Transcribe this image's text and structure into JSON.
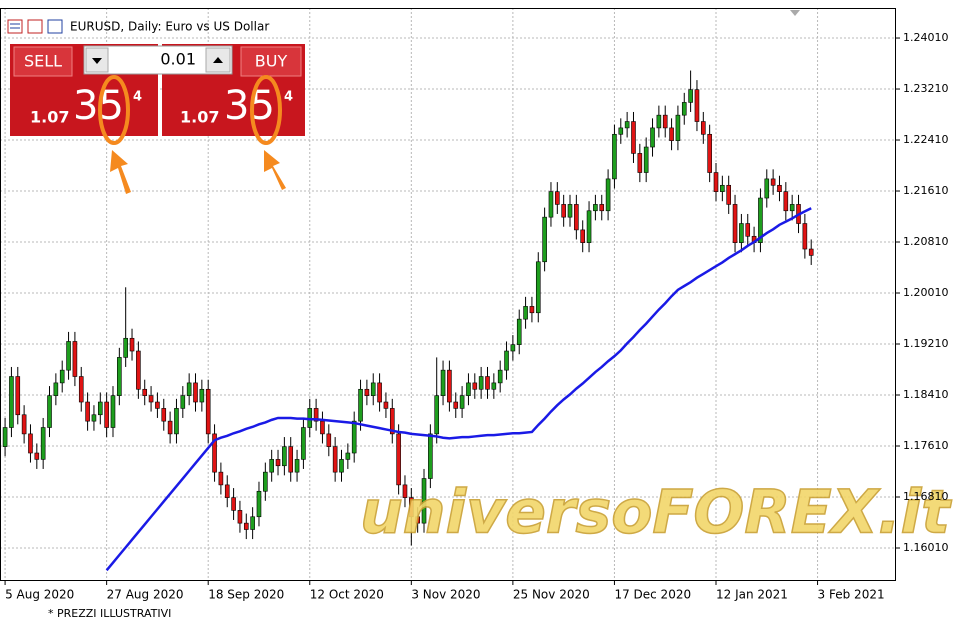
{
  "chart_data": {
    "type": "candlestick",
    "title": "EURUSD, Daily:  Euro vs US Dollar",
    "footnote": "* PREZZI ILLUSTRATIVI",
    "watermark": "universoFOREX.it",
    "up_color": "#1e9e1e",
    "down_color": "#e01414",
    "wick_color": "#000000",
    "ma_color": "#1a1ae6",
    "grid": true,
    "xlim": [
      -0.8,
      140.2
    ],
    "ylim": [
      1.15508,
      1.24481
    ],
    "xticks": [
      {
        "value": 0,
        "label": "5 Aug 2020"
      },
      {
        "value": 16,
        "label": "27 Aug 2020"
      },
      {
        "value": 32,
        "label": "18 Sep 2020"
      },
      {
        "value": 48,
        "label": "12 Oct 2020"
      },
      {
        "value": 64,
        "label": "3 Nov 2020"
      },
      {
        "value": 80,
        "label": "25 Nov 2020"
      },
      {
        "value": 96,
        "label": "17 Dec 2020"
      },
      {
        "value": 112,
        "label": "12 Jan 2021"
      },
      {
        "value": 128,
        "label": "3 Feb 2021"
      }
    ],
    "yticks": [
      {
        "value": 1.1601,
        "label": "1.16010"
      },
      {
        "value": 1.1681,
        "label": "1.16810"
      },
      {
        "value": 1.1761,
        "label": "1.17610"
      },
      {
        "value": 1.1841,
        "label": "1.18410"
      },
      {
        "value": 1.1921,
        "label": "1.19210"
      },
      {
        "value": 1.2001,
        "label": "1.20010"
      },
      {
        "value": 1.2081,
        "label": "1.20810"
      },
      {
        "value": 1.2161,
        "label": "1.21610"
      },
      {
        "value": 1.2241,
        "label": "1.22410"
      },
      {
        "value": 1.2321,
        "label": "1.23210"
      },
      {
        "value": 1.2401,
        "label": "1.24010"
      }
    ],
    "open": [
      1.176,
      1.179,
      1.187,
      1.181,
      1.178,
      1.175,
      1.174,
      1.179,
      1.184,
      1.186,
      1.188,
      1.1925,
      1.187,
      1.183,
      1.18,
      1.181,
      1.183,
      1.179,
      1.184,
      1.19,
      1.193,
      1.191,
      1.185,
      1.184,
      1.183,
      1.182,
      1.18,
      1.178,
      1.182,
      1.184,
      1.186,
      1.183,
      1.185,
      1.178,
      1.172,
      1.17,
      1.168,
      1.166,
      1.164,
      1.163,
      1.165,
      1.169,
      1.172,
      1.174,
      1.173,
      1.176,
      1.172,
      1.174,
      1.179,
      1.182,
      1.18,
      1.178,
      1.176,
      1.172,
      1.174,
      1.175,
      1.18,
      1.185,
      1.184,
      1.186,
      1.183,
      1.182,
      1.178,
      1.17,
      1.168,
      1.165,
      1.164,
      1.171,
      1.178,
      1.184,
      1.188,
      1.183,
      1.182,
      1.184,
      1.186,
      1.185,
      1.187,
      1.185,
      1.186,
      1.188,
      1.191,
      1.192,
      1.196,
      1.198,
      1.197,
      1.205,
      1.212,
      1.216,
      1.214,
      1.212,
      1.214,
      1.21,
      1.208,
      1.213,
      1.214,
      1.213,
      1.218,
      1.225,
      1.226,
      1.227,
      1.222,
      1.219,
      1.223,
      1.226,
      1.228,
      1.226,
      1.224,
      1.228,
      1.23,
      1.232,
      1.227,
      1.225,
      1.219,
      1.216,
      1.217,
      1.214,
      1.208,
      1.211,
      1.209,
      1.208,
      1.215,
      1.218,
      1.217,
      1.216,
      1.213,
      1.214,
      1.211,
      1.207
    ],
    "high": [
      1.1805,
      1.1885,
      1.1885,
      1.1825,
      1.1795,
      1.1765,
      1.1805,
      1.1855,
      1.1875,
      1.1895,
      1.194,
      1.194,
      1.1885,
      1.1845,
      1.1825,
      1.1845,
      1.1845,
      1.1855,
      1.1915,
      1.201,
      1.1945,
      1.1925,
      1.1865,
      1.1855,
      1.1845,
      1.1835,
      1.1815,
      1.1835,
      1.1855,
      1.1875,
      1.1875,
      1.1865,
      1.1865,
      1.1795,
      1.1735,
      1.1715,
      1.1695,
      1.1675,
      1.1655,
      1.1665,
      1.1705,
      1.1735,
      1.1755,
      1.1755,
      1.1775,
      1.1775,
      1.1755,
      1.1805,
      1.1835,
      1.1835,
      1.1815,
      1.1795,
      1.1775,
      1.1755,
      1.1765,
      1.1815,
      1.1865,
      1.1865,
      1.1875,
      1.1875,
      1.1845,
      1.1835,
      1.1795,
      1.1715,
      1.1695,
      1.1665,
      1.1725,
      1.1795,
      1.19,
      1.1895,
      1.1895,
      1.1845,
      1.1855,
      1.1875,
      1.1875,
      1.1885,
      1.1885,
      1.1875,
      1.1895,
      1.1925,
      1.1935,
      1.1975,
      1.1995,
      1.1995,
      1.2065,
      1.2135,
      1.2175,
      1.2175,
      1.2155,
      1.2155,
      1.2155,
      1.2115,
      1.2145,
      1.2155,
      1.2155,
      1.2195,
      1.2265,
      1.2275,
      1.2285,
      1.2285,
      1.2235,
      1.2245,
      1.2275,
      1.2295,
      1.2295,
      1.2275,
      1.2295,
      1.2315,
      1.235,
      1.2335,
      1.2285,
      1.2265,
      1.2205,
      1.2185,
      1.2185,
      1.2155,
      1.2125,
      1.2125,
      1.2105,
      1.2165,
      1.2195,
      1.2195,
      1.2185,
      1.2175,
      1.2155,
      1.2155,
      1.2125,
      1.2085
    ],
    "low": [
      1.1745,
      1.1775,
      1.1795,
      1.1765,
      1.1735,
      1.1725,
      1.1725,
      1.1775,
      1.1825,
      1.1845,
      1.1865,
      1.1855,
      1.1815,
      1.1785,
      1.1785,
      1.1795,
      1.1775,
      1.1775,
      1.1825,
      1.1885,
      1.1895,
      1.1835,
      1.1825,
      1.1815,
      1.1805,
      1.1785,
      1.1765,
      1.1765,
      1.1805,
      1.1825,
      1.1815,
      1.1815,
      1.1765,
      1.1705,
      1.1685,
      1.1665,
      1.1645,
      1.1625,
      1.1615,
      1.1615,
      1.1635,
      1.1675,
      1.1705,
      1.1715,
      1.1715,
      1.1705,
      1.1705,
      1.1725,
      1.1775,
      1.1785,
      1.1765,
      1.1745,
      1.1705,
      1.1705,
      1.1725,
      1.1735,
      1.1785,
      1.1825,
      1.1825,
      1.1815,
      1.1805,
      1.1765,
      1.1685,
      1.1665,
      1.1605,
      1.1625,
      1.1625,
      1.1695,
      1.1765,
      1.1825,
      1.1815,
      1.1805,
      1.1805,
      1.1825,
      1.1835,
      1.1835,
      1.1835,
      1.1835,
      1.1845,
      1.1865,
      1.1895,
      1.1905,
      1.1945,
      1.1955,
      1.1955,
      1.2035,
      1.2105,
      1.2125,
      1.2105,
      1.2105,
      1.2085,
      1.2065,
      1.2065,
      1.2115,
      1.2115,
      1.2115,
      1.2165,
      1.2235,
      1.2245,
      1.2205,
      1.2175,
      1.2175,
      1.2215,
      1.2245,
      1.2245,
      1.2225,
      1.2225,
      1.2265,
      1.2285,
      1.2255,
      1.2235,
      1.2175,
      1.2145,
      1.2145,
      1.2125,
      1.2065,
      1.2065,
      1.2075,
      1.2065,
      1.2065,
      1.2135,
      1.2155,
      1.2145,
      1.2115,
      1.2115,
      1.2095,
      1.2055,
      1.2045
    ],
    "close": [
      1.179,
      1.187,
      1.181,
      1.178,
      1.175,
      1.174,
      1.179,
      1.184,
      1.186,
      1.188,
      1.1925,
      1.187,
      1.183,
      1.18,
      1.181,
      1.183,
      1.179,
      1.184,
      1.19,
      1.193,
      1.191,
      1.185,
      1.184,
      1.183,
      1.182,
      1.18,
      1.178,
      1.182,
      1.184,
      1.186,
      1.183,
      1.185,
      1.178,
      1.172,
      1.17,
      1.168,
      1.166,
      1.164,
      1.163,
      1.165,
      1.169,
      1.172,
      1.174,
      1.173,
      1.176,
      1.172,
      1.174,
      1.179,
      1.182,
      1.18,
      1.178,
      1.176,
      1.172,
      1.174,
      1.175,
      1.18,
      1.185,
      1.184,
      1.186,
      1.183,
      1.182,
      1.178,
      1.17,
      1.168,
      1.165,
      1.164,
      1.171,
      1.178,
      1.184,
      1.188,
      1.183,
      1.182,
      1.184,
      1.186,
      1.185,
      1.187,
      1.185,
      1.186,
      1.188,
      1.191,
      1.192,
      1.196,
      1.198,
      1.197,
      1.205,
      1.212,
      1.216,
      1.214,
      1.212,
      1.214,
      1.21,
      1.208,
      1.213,
      1.214,
      1.213,
      1.218,
      1.225,
      1.226,
      1.227,
      1.222,
      1.219,
      1.223,
      1.226,
      1.228,
      1.226,
      1.224,
      1.228,
      1.23,
      1.232,
      1.227,
      1.225,
      1.219,
      1.216,
      1.217,
      1.214,
      1.208,
      1.211,
      1.209,
      1.208,
      1.215,
      1.218,
      1.217,
      1.216,
      1.213,
      1.214,
      1.211,
      1.207,
      1.206
    ],
    "ma_values": [
      null,
      null,
      null,
      null,
      null,
      null,
      null,
      null,
      null,
      null,
      null,
      null,
      null,
      null,
      null,
      null,
      1.1566,
      1.1578,
      1.159,
      1.1602,
      1.1614,
      1.1626,
      1.1638,
      1.165,
      1.1662,
      1.1674,
      1.1686,
      1.1698,
      1.171,
      1.1722,
      1.1734,
      1.1746,
      1.1758,
      1.177,
      1.1774,
      1.1777,
      1.1781,
      1.1784,
      1.1788,
      1.1791,
      1.1795,
      1.1798,
      1.1802,
      1.1805,
      1.1805,
      1.1805,
      1.1804,
      1.1804,
      1.1803,
      1.1803,
      1.1802,
      1.1801,
      1.18,
      1.1799,
      1.1798,
      1.1797,
      1.1795,
      1.1793,
      1.1791,
      1.1789,
      1.1787,
      1.1785,
      1.1783,
      1.1782,
      1.178,
      1.1779,
      1.1778,
      1.1777,
      1.1776,
      1.1774,
      1.1773,
      1.1774,
      1.1775,
      1.1775,
      1.1776,
      1.1777,
      1.1778,
      1.1778,
      1.1779,
      1.178,
      1.1781,
      1.1781,
      1.1782,
      1.1783,
      1.1794,
      1.1804,
      1.1815,
      1.1825,
      1.1834,
      1.1842,
      1.1851,
      1.1859,
      1.1868,
      1.1877,
      1.1885,
      1.1894,
      1.1902,
      1.1911,
      1.1922,
      1.1932,
      1.1943,
      1.1953,
      1.1964,
      1.1975,
      1.1985,
      1.1996,
      1.2006,
      1.2012,
      1.2018,
      1.2025,
      1.2031,
      1.2037,
      1.2043,
      1.2049,
      1.2056,
      1.2062,
      1.2068,
      1.2075,
      1.2081,
      1.2088,
      1.2095,
      1.2101,
      1.2108,
      1.2113,
      1.2118,
      1.2124,
      1.2129,
      1.2134
    ]
  },
  "trade_panel": {
    "sell": "SELL",
    "buy": "BUY",
    "lot": "0.01",
    "sell_price": {
      "big": "1.07",
      "pips": "35",
      "point": "4"
    },
    "buy_price": {
      "big": "1.07",
      "pips": "35",
      "point": "4"
    }
  }
}
